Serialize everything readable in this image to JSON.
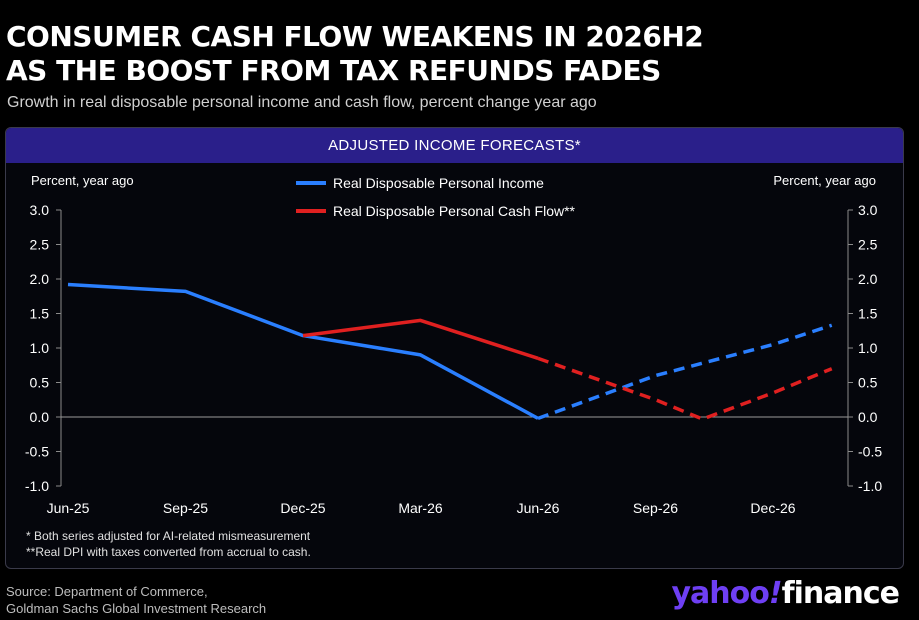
{
  "header": {
    "title_line1": "CONSUMER CASH FLOW WEAKENS IN 2026H2",
    "title_line2": "AS THE BOOST FROM TAX REFUNDS FADES",
    "subtitle": "Growth in real disposable personal income and cash flow, percent change year ago"
  },
  "panel": {
    "header": "ADJUSTED INCOME FORECASTS*"
  },
  "footnotes": {
    "note1": "* Both series adjusted for AI-related mismeasurement",
    "note2": "**Real DPI with taxes converted from accrual to cash."
  },
  "source": {
    "line1": "Source: Department of Commerce,",
    "line2": "Goldman Sachs Global Investment Research"
  },
  "logo": {
    "brand": "yahoo",
    "slash": "!",
    "sub": "finance"
  },
  "colors": {
    "income": "#2a7fff",
    "cash_flow": "#e02020",
    "panel_header": "#2a1f8a"
  },
  "chart_data": {
    "type": "line",
    "ylabel_left": "Percent, year ago",
    "ylabel_right": "Percent, year ago",
    "ylim": [
      -1.0,
      3.0
    ],
    "yticks": [
      3.0,
      2.5,
      2.0,
      1.5,
      1.0,
      0.5,
      0.0,
      -0.5,
      -1.0
    ],
    "ytick_labels_left": [
      "3.0",
      "2.5",
      "2.0",
      "1.5",
      "1.0",
      "0.5",
      "0.0",
      "-0.5",
      "-1.0"
    ],
    "ytick_labels_right": [
      "3.0",
      "2.5",
      "2.0",
      "1.5",
      "1.0",
      "0.5",
      "0.0",
      "-0.5",
      "-1.0"
    ],
    "xlim": [
      0,
      7
    ],
    "xticks": [
      0,
      1,
      2,
      3,
      4,
      5,
      6
    ],
    "xtick_labels": [
      "Jun-25",
      "Sep-25",
      "Dec-25",
      "Mar-26",
      "Jun-26",
      "Sep-26",
      "Dec-26"
    ],
    "legend_position": "top-center",
    "grid": false,
    "series": [
      {
        "name": "Real Disposable Personal Income",
        "color": "#2a7fff",
        "actual": {
          "x": [
            0,
            1,
            2,
            3,
            4
          ],
          "y": [
            1.92,
            1.82,
            1.18,
            0.9,
            -0.02
          ]
        },
        "forecast": {
          "x": [
            4,
            5,
            6,
            6.5
          ],
          "y": [
            -0.02,
            0.6,
            1.05,
            1.33
          ]
        }
      },
      {
        "name": "Real Disposable Personal Cash Flow**",
        "color": "#e02020",
        "actual": {
          "x": [
            2,
            3,
            4
          ],
          "y": [
            1.18,
            1.4,
            0.85
          ]
        },
        "forecast": {
          "x": [
            4,
            5,
            5.4,
            6,
            6.5
          ],
          "y": [
            0.85,
            0.25,
            -0.03,
            0.35,
            0.7
          ]
        }
      }
    ]
  }
}
